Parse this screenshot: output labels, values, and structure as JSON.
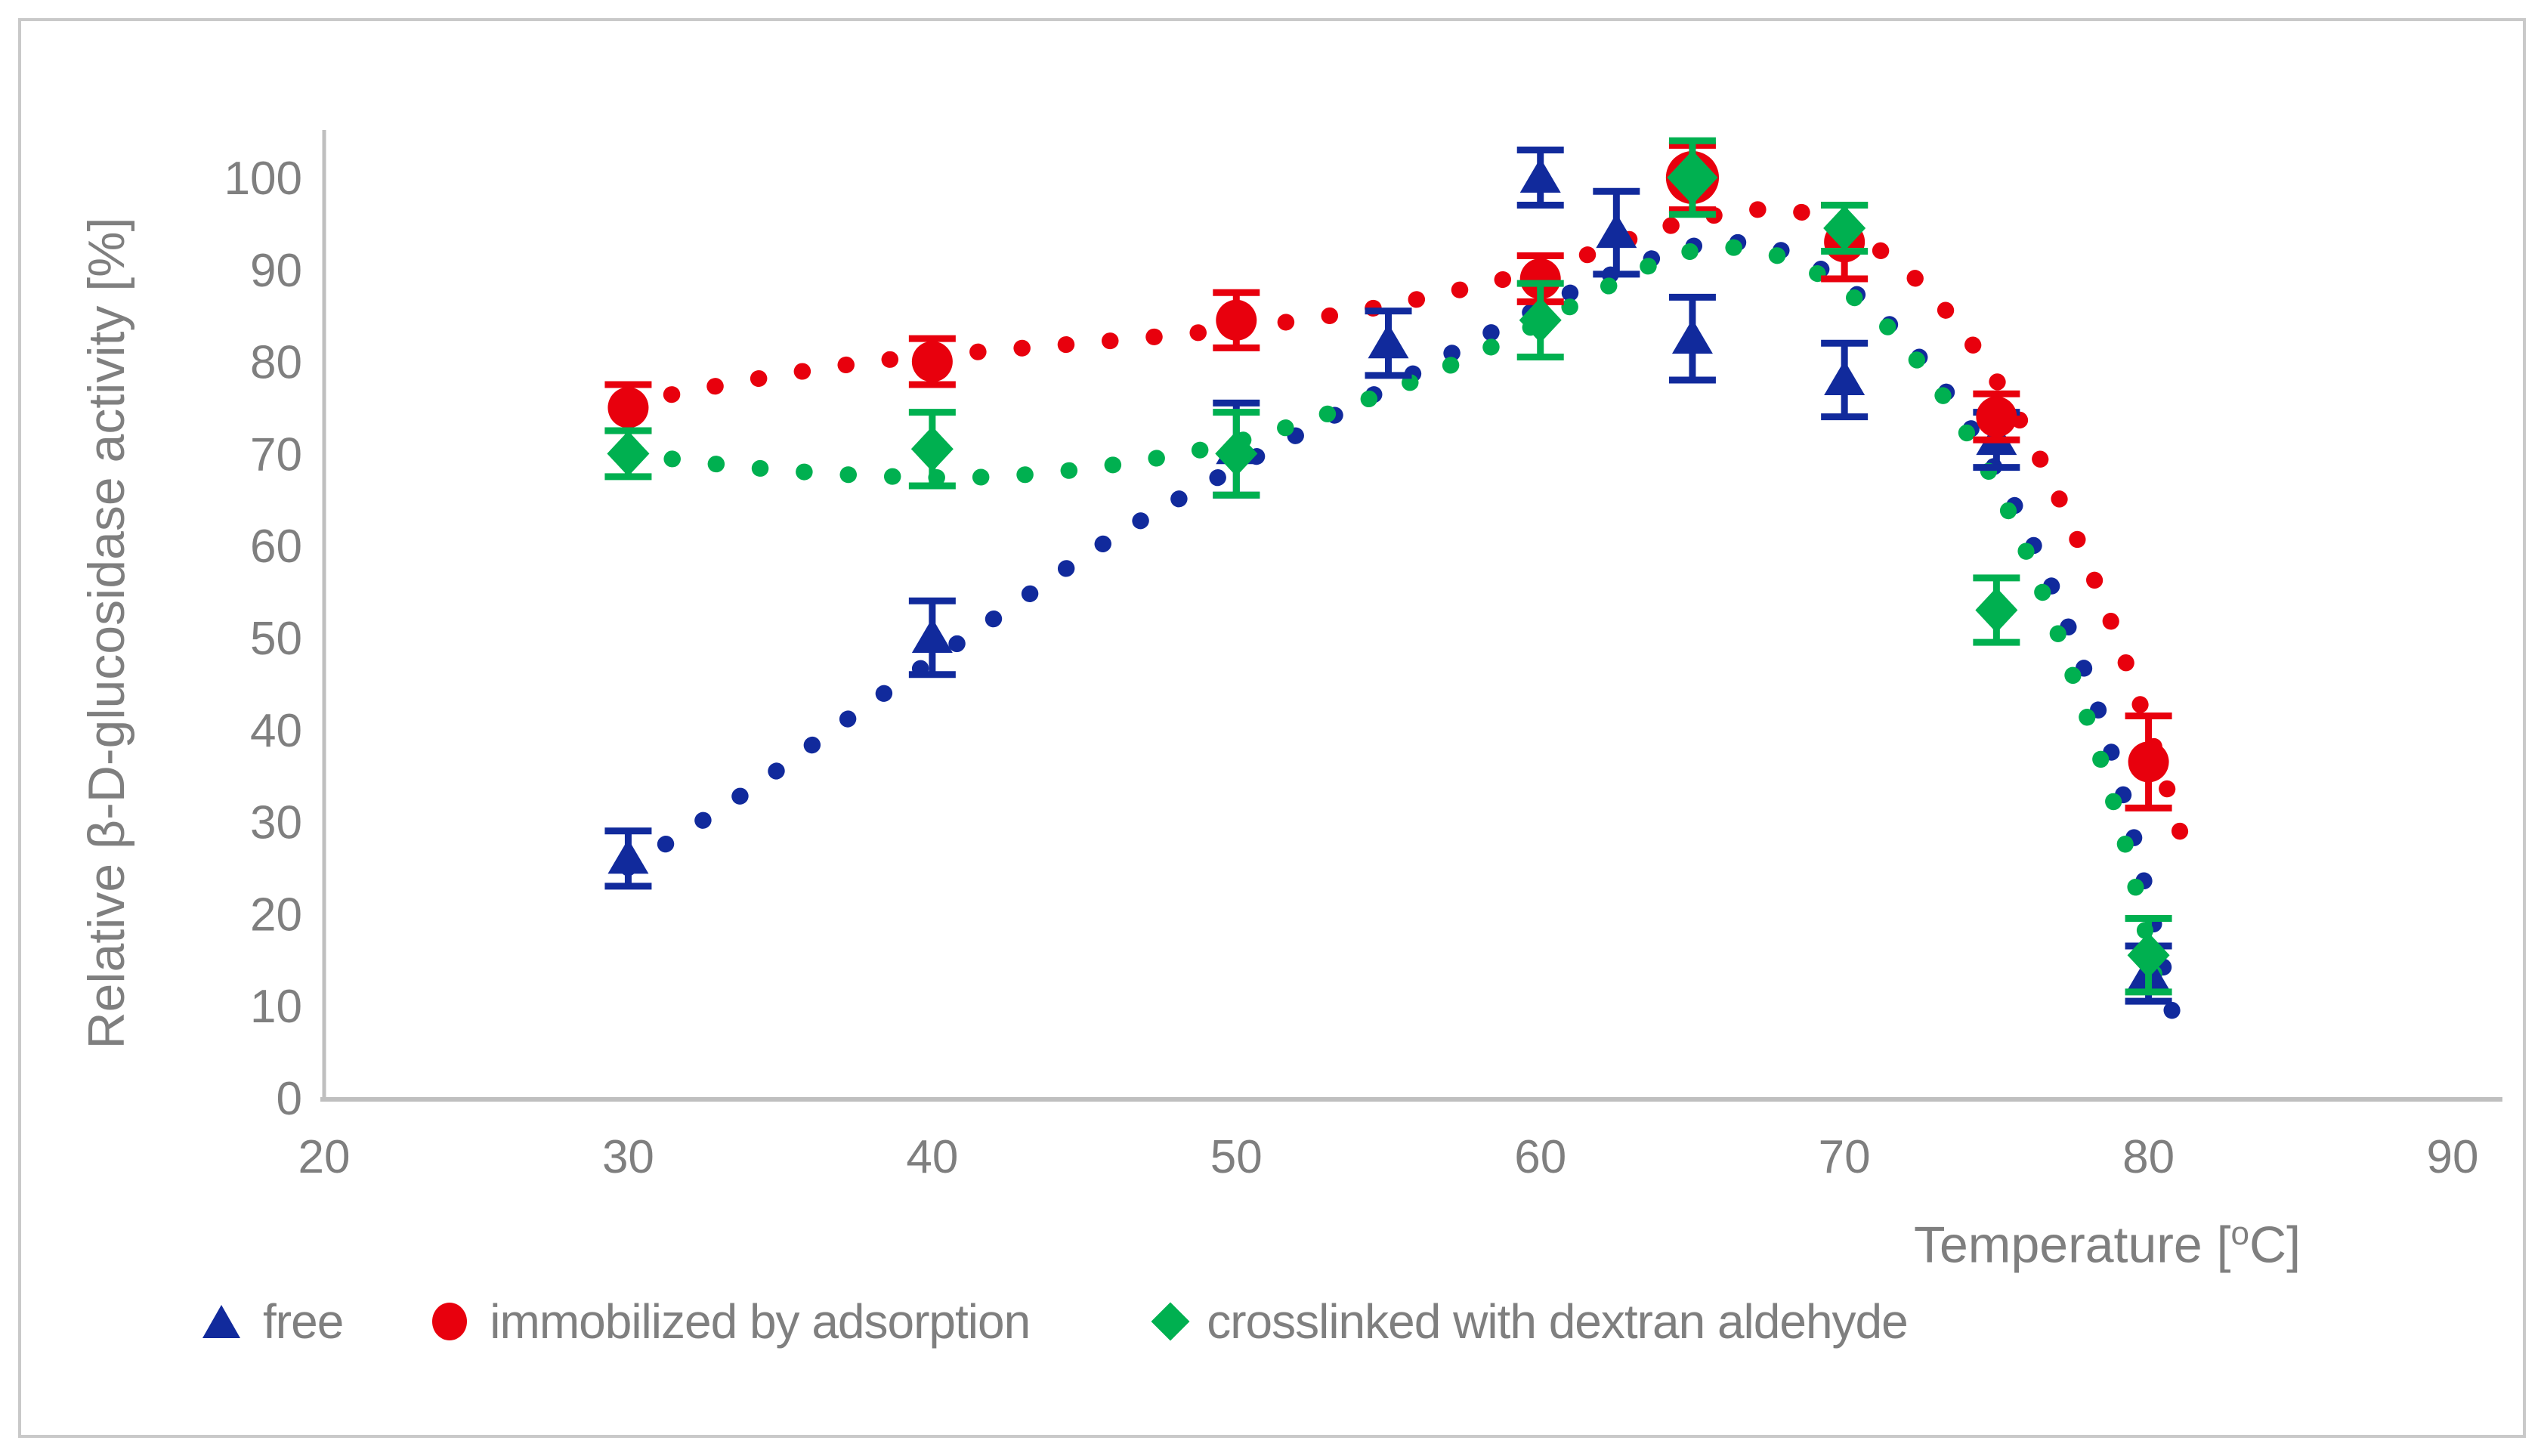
{
  "figure": {
    "background": "#ffffff",
    "border_color": "#c9c9c9",
    "axis_line_color": "#bfbfbf",
    "text_color": "#7f7f7f"
  },
  "chart_data": {
    "type": "scatter",
    "title": "",
    "xlabel": "Temperature [°C]",
    "xlabel_parts": [
      "Temperature [",
      "o",
      "C]"
    ],
    "ylabel": "Relative β-D-glucosidase activity [%]",
    "xlim": [
      20,
      90
    ],
    "ylim": [
      0,
      100
    ],
    "xticks": [
      20,
      30,
      40,
      50,
      60,
      70,
      80,
      90
    ],
    "yticks": [
      0,
      10,
      20,
      30,
      40,
      50,
      60,
      70,
      80,
      90,
      100
    ],
    "grid": false,
    "legend_position": "bottom",
    "series": [
      {
        "label": "free",
        "marker": "triangle",
        "color": "#112a9c",
        "points": [
          {
            "x": 30,
            "y": 26,
            "err": 3
          },
          {
            "x": 40,
            "y": 50,
            "err": 4
          },
          {
            "x": 50,
            "y": 70.5,
            "err": 5
          },
          {
            "x": 55,
            "y": 82,
            "err": 3.5
          },
          {
            "x": 60,
            "y": 100,
            "err": 3
          },
          {
            "x": 62.5,
            "y": 94,
            "err": 4.5
          },
          {
            "x": 65,
            "y": 82.5,
            "err": 4.5
          },
          {
            "x": 70,
            "y": 78,
            "err": 4
          },
          {
            "x": 75,
            "y": 71.5,
            "err": 3
          },
          {
            "x": 80,
            "y": 13.5,
            "err": 3
          }
        ],
        "trend": [
          [
            30,
            25
          ],
          [
            34,
            33.5
          ],
          [
            38,
            43
          ],
          [
            42,
            52
          ],
          [
            46,
            61
          ],
          [
            50,
            68.5
          ],
          [
            54,
            75.5
          ],
          [
            58,
            82.5
          ],
          [
            61,
            87.5
          ],
          [
            63.5,
            91
          ],
          [
            65.5,
            92.8
          ],
          [
            67.5,
            92.5
          ],
          [
            69.5,
            89.5
          ],
          [
            71.5,
            84
          ],
          [
            73.5,
            76
          ],
          [
            75.5,
            65
          ],
          [
            77.5,
            50
          ],
          [
            79,
            35
          ],
          [
            80.3,
            17
          ],
          [
            80.8,
            9
          ]
        ]
      },
      {
        "label": "immobilized by adsorption",
        "marker": "circle",
        "color": "#e8000d",
        "points": [
          {
            "x": 30,
            "y": 75,
            "err": 2.5
          },
          {
            "x": 40,
            "y": 80,
            "err": 2.5
          },
          {
            "x": 50,
            "y": 84.5,
            "err": 3
          },
          {
            "x": 60,
            "y": 89,
            "err": 2.5
          },
          {
            "x": 65,
            "y": 100,
            "err": 3.5,
            "size": 1.3
          },
          {
            "x": 70,
            "y": 93,
            "err": 4
          },
          {
            "x": 75,
            "y": 74,
            "err": 2.5
          },
          {
            "x": 80,
            "y": 36.5,
            "err": 5
          }
        ],
        "trend": [
          [
            30,
            75.5
          ],
          [
            34,
            78
          ],
          [
            38,
            80
          ],
          [
            42,
            81.2
          ],
          [
            46,
            82.3
          ],
          [
            50,
            83.6
          ],
          [
            54,
            85.5
          ],
          [
            58,
            88.3
          ],
          [
            61,
            91
          ],
          [
            64,
            94.5
          ],
          [
            66.5,
            96.3
          ],
          [
            68.5,
            96.3
          ],
          [
            70.5,
            93.5
          ],
          [
            72.5,
            88.5
          ],
          [
            74.5,
            80.5
          ],
          [
            76.5,
            69
          ],
          [
            78.5,
            54
          ],
          [
            80,
            40
          ],
          [
            81.3,
            26
          ]
        ]
      },
      {
        "label": "crosslinked with dextran aldehyde",
        "marker": "diamond",
        "color": "#00b050",
        "points": [
          {
            "x": 30,
            "y": 70,
            "err": 2.5
          },
          {
            "x": 40,
            "y": 70.5,
            "err": 4
          },
          {
            "x": 50,
            "y": 70,
            "err": 4.5
          },
          {
            "x": 60,
            "y": 84.5,
            "err": 4
          },
          {
            "x": 65,
            "y": 100,
            "err": 4,
            "size": 1.2
          },
          {
            "x": 70,
            "y": 94.5,
            "err": 2.5
          },
          {
            "x": 75,
            "y": 53,
            "err": 3.5
          },
          {
            "x": 80,
            "y": 15.5,
            "err": 4
          }
        ],
        "trend": [
          [
            30,
            70
          ],
          [
            34,
            68.5
          ],
          [
            38,
            67.6
          ],
          [
            42,
            67.5
          ],
          [
            46,
            68.8
          ],
          [
            50,
            71.3
          ],
          [
            54,
            75.5
          ],
          [
            58,
            81
          ],
          [
            61,
            86
          ],
          [
            63.5,
            90.3
          ],
          [
            65.5,
            92.3
          ],
          [
            67.5,
            91.8
          ],
          [
            69.5,
            88.8
          ],
          [
            71.5,
            83.5
          ],
          [
            73.5,
            75
          ],
          [
            75.5,
            63
          ],
          [
            77.5,
            46
          ],
          [
            79.2,
            28
          ],
          [
            80.4,
            10
          ]
        ]
      }
    ]
  }
}
